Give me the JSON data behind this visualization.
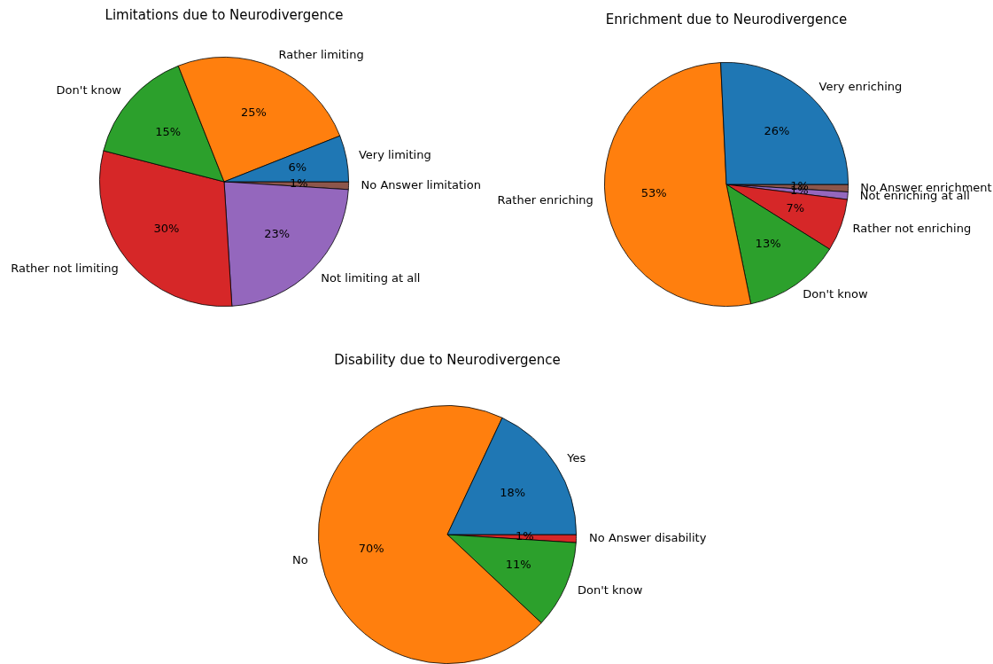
{
  "chart_data": [
    {
      "type": "pie",
      "title": "Limitations due to Neurodivergence",
      "categories": [
        "Very limiting",
        "Rather limiting",
        "Don't know",
        "Rather not limiting",
        "Not limiting at all",
        "No Answer limitation"
      ],
      "values": [
        6,
        25,
        15,
        30,
        23,
        1
      ],
      "colors": [
        "#1f77b4",
        "#ff7f0e",
        "#2ca02c",
        "#d62728",
        "#9467bd",
        "#8c564b"
      ],
      "value_labels": [
        "6%",
        "25%",
        "15%",
        "30%",
        "23%",
        "1%"
      ]
    },
    {
      "type": "pie",
      "title": "Enrichment due to Neurodivergence",
      "categories": [
        "Very enriching",
        "Rather enriching",
        "Don't know",
        "Rather not enriching",
        "Not enriching at all",
        "No Answer enrichment"
      ],
      "values": [
        26,
        53,
        13,
        7,
        1,
        1
      ],
      "colors": [
        "#1f77b4",
        "#ff7f0e",
        "#2ca02c",
        "#d62728",
        "#9467bd",
        "#8c564b"
      ],
      "value_labels": [
        "26%",
        "53%",
        "13%",
        "7%",
        "1%",
        "1%"
      ]
    },
    {
      "type": "pie",
      "title": "Disability due to Neurodivergence",
      "categories": [
        "Yes",
        "No",
        "Don't know",
        "No Answer disability"
      ],
      "values": [
        18,
        70,
        11,
        1
      ],
      "colors": [
        "#1f77b4",
        "#ff7f0e",
        "#2ca02c",
        "#d62728"
      ],
      "value_labels": [
        "18%",
        "70%",
        "11%",
        "1%"
      ]
    }
  ]
}
